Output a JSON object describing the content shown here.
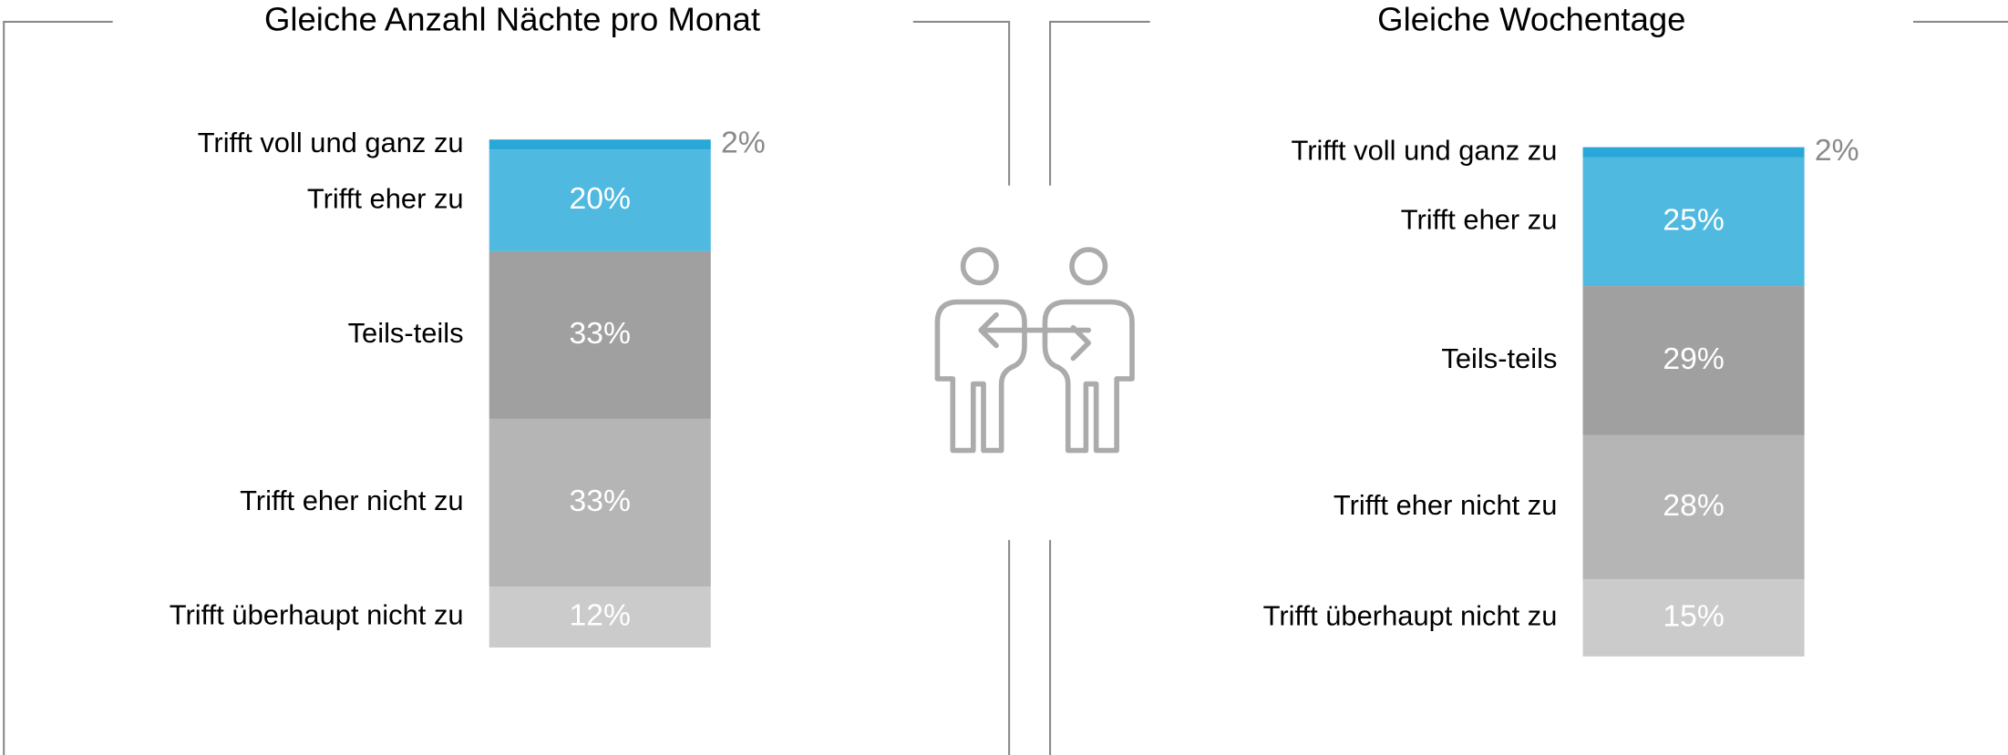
{
  "chart_data": [
    {
      "type": "stacked-bar",
      "title": "Gleiche Anzahl Nächte pro Monat",
      "categories": [
        "Trifft voll und ganz zu",
        "Trifft eher zu",
        "Teils-teils",
        "Trifft eher nicht zu",
        "Trifft überhaupt nicht zu"
      ],
      "values": [
        2,
        20,
        33,
        33,
        12
      ],
      "value_labels": [
        "2%",
        "20%",
        "33%",
        "33%",
        "12%"
      ],
      "colors": [
        "#29a8d8",
        "#4fb9df",
        "#a0a0a0",
        "#b5b5b5",
        "#cbcbcb"
      ]
    },
    {
      "type": "stacked-bar",
      "title": "Gleiche Wochentage",
      "categories": [
        "Trifft voll und ganz zu",
        "Trifft eher zu",
        "Teils-teils",
        "Trifft eher nicht zu",
        "Trifft überhaupt nicht zu"
      ],
      "values": [
        2,
        25,
        29,
        28,
        15
      ],
      "value_labels": [
        "2%",
        "25%",
        "29%",
        "28%",
        "15%"
      ],
      "colors": [
        "#29a8d8",
        "#4fb9df",
        "#a0a0a0",
        "#b5b5b5",
        "#cbcbcb"
      ]
    }
  ]
}
